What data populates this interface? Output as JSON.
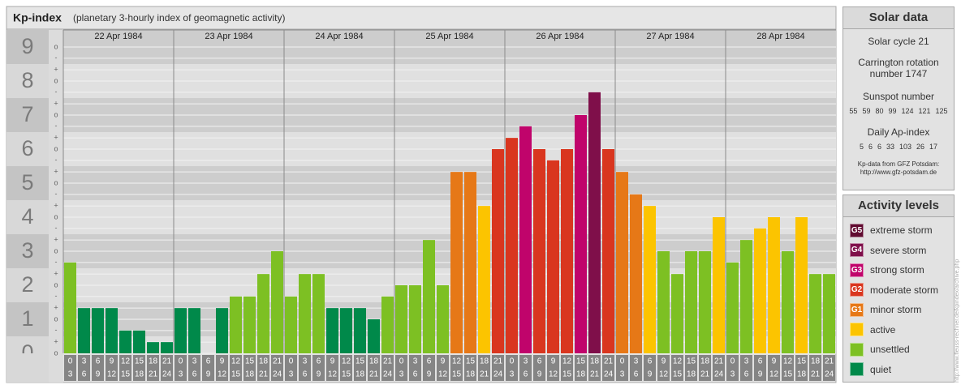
{
  "chart_data": {
    "type": "bar",
    "title": "Kp-index",
    "subtitle": "(planetary 3-hourly index of geomagnetic activity)",
    "ylim": [
      0,
      9.5
    ],
    "yticks": [
      0,
      1,
      2,
      3,
      4,
      5,
      6,
      7,
      8,
      9
    ],
    "minor_ticks": [
      {
        "value": 0,
        "label": "o"
      },
      {
        "value": 0.33,
        "label": "+"
      },
      {
        "value": 0.67,
        "label": "-"
      },
      {
        "value": 1,
        "label": "o"
      },
      {
        "value": 1.33,
        "label": "+"
      },
      {
        "value": 1.67,
        "label": "-"
      },
      {
        "value": 2,
        "label": "o"
      },
      {
        "value": 2.33,
        "label": "+"
      },
      {
        "value": 2.67,
        "label": "-"
      },
      {
        "value": 3,
        "label": "o"
      },
      {
        "value": 3.33,
        "label": "+"
      },
      {
        "value": 3.67,
        "label": "-"
      },
      {
        "value": 4,
        "label": "o"
      },
      {
        "value": 4.33,
        "label": "+"
      },
      {
        "value": 4.67,
        "label": "-"
      },
      {
        "value": 5,
        "label": "o"
      },
      {
        "value": 5.33,
        "label": "+"
      },
      {
        "value": 5.67,
        "label": "-"
      },
      {
        "value": 6,
        "label": "o"
      },
      {
        "value": 6.33,
        "label": "+"
      },
      {
        "value": 6.67,
        "label": "-"
      },
      {
        "value": 7,
        "label": "o"
      },
      {
        "value": 7.33,
        "label": "+"
      },
      {
        "value": 7.67,
        "label": "-"
      },
      {
        "value": 8,
        "label": "o"
      },
      {
        "value": 8.33,
        "label": "+"
      },
      {
        "value": 8.67,
        "label": "-"
      },
      {
        "value": 9,
        "label": "o"
      }
    ],
    "slots": [
      {
        "from": "0",
        "to": "3"
      },
      {
        "from": "3",
        "to": "6"
      },
      {
        "from": "6",
        "to": "9"
      },
      {
        "from": "9",
        "to": "12"
      },
      {
        "from": "12",
        "to": "15"
      },
      {
        "from": "15",
        "to": "18"
      },
      {
        "from": "18",
        "to": "21"
      },
      {
        "from": "21",
        "to": "24"
      }
    ],
    "days": [
      {
        "date": "22 Apr 1984",
        "values": [
          2.67,
          1.33,
          1.33,
          1.33,
          0.67,
          0.67,
          0.33,
          0.33
        ],
        "colors": [
          "#7dc023",
          "#00894a",
          "#00894a",
          "#00894a",
          "#00894a",
          "#00894a",
          "#00894a",
          "#00894a"
        ]
      },
      {
        "date": "23 Apr 1984",
        "values": [
          1.33,
          1.33,
          0,
          1.33,
          1.67,
          1.67,
          2.33,
          3
        ],
        "colors": [
          "#00894a",
          "#00894a",
          "#00894a",
          "#00894a",
          "#7dc023",
          "#7dc023",
          "#7dc023",
          "#7dc023"
        ]
      },
      {
        "date": "24 Apr 1984",
        "values": [
          1.67,
          2.33,
          2.33,
          1.33,
          1.33,
          1.33,
          1,
          1.67
        ],
        "colors": [
          "#7dc023",
          "#7dc023",
          "#7dc023",
          "#00894a",
          "#00894a",
          "#00894a",
          "#00894a",
          "#7dc023"
        ]
      },
      {
        "date": "25 Apr 1984",
        "values": [
          2,
          2,
          3.33,
          2,
          5.33,
          5.33,
          4.33,
          6
        ],
        "colors": [
          "#7dc023",
          "#7dc023",
          "#7dc023",
          "#7dc023",
          "#e67817",
          "#e67817",
          "#fcc400",
          "#d9361f"
        ]
      },
      {
        "date": "26 Apr 1984",
        "values": [
          6.33,
          6.67,
          6,
          5.67,
          6,
          7,
          7.67,
          6
        ],
        "colors": [
          "#d9361f",
          "#c0046b",
          "#d9361f",
          "#d9361f",
          "#d9361f",
          "#c0046b",
          "#7f0f4a",
          "#d9361f"
        ]
      },
      {
        "date": "27 Apr 1984",
        "values": [
          5.33,
          4.67,
          4.33,
          3,
          2.33,
          3,
          3,
          4
        ],
        "colors": [
          "#e67817",
          "#e67817",
          "#fcc400",
          "#7dc023",
          "#7dc023",
          "#7dc023",
          "#7dc023",
          "#fcc400"
        ]
      },
      {
        "date": "28 Apr 1984",
        "values": [
          2.67,
          3.33,
          3.67,
          4,
          3,
          4,
          2.33,
          2.33
        ],
        "colors": [
          "#7dc023",
          "#7dc023",
          "#fcc400",
          "#fcc400",
          "#7dc023",
          "#fcc400",
          "#7dc023",
          "#7dc023"
        ]
      }
    ]
  },
  "solar_data": {
    "title": "Solar data",
    "cycle": "Solar cycle 21",
    "carrington": "Carrington rotation number 1747",
    "sunspot_title": "Sunspot number",
    "sunspots": [
      55,
      59,
      80,
      99,
      124,
      121,
      125
    ],
    "ap_title": "Daily Ap-index",
    "ap": [
      5,
      6,
      6,
      33,
      103,
      26,
      17
    ],
    "source": "Kp-data from GFZ Potsdam:",
    "source_url": "http://www.gfz-potsdam.de"
  },
  "activity_levels": {
    "title": "Activity levels",
    "levels": [
      {
        "badge": "G5",
        "name": "extreme storm",
        "color": "#610b30"
      },
      {
        "badge": "G4",
        "name": "severe storm",
        "color": "#7f0f4a"
      },
      {
        "badge": "G3",
        "name": "strong storm",
        "color": "#c0046b"
      },
      {
        "badge": "G2",
        "name": "moderate storm",
        "color": "#d9361f"
      },
      {
        "badge": "G1",
        "name": "minor storm",
        "color": "#e67817"
      },
      {
        "name": "active",
        "color": "#fcc400"
      },
      {
        "name": "unsettled",
        "color": "#7dc023"
      },
      {
        "name": "quiet",
        "color": "#00894a"
      }
    ]
  },
  "credit": "http://www.fleuss-rechner.de/kpindex/archive.php"
}
